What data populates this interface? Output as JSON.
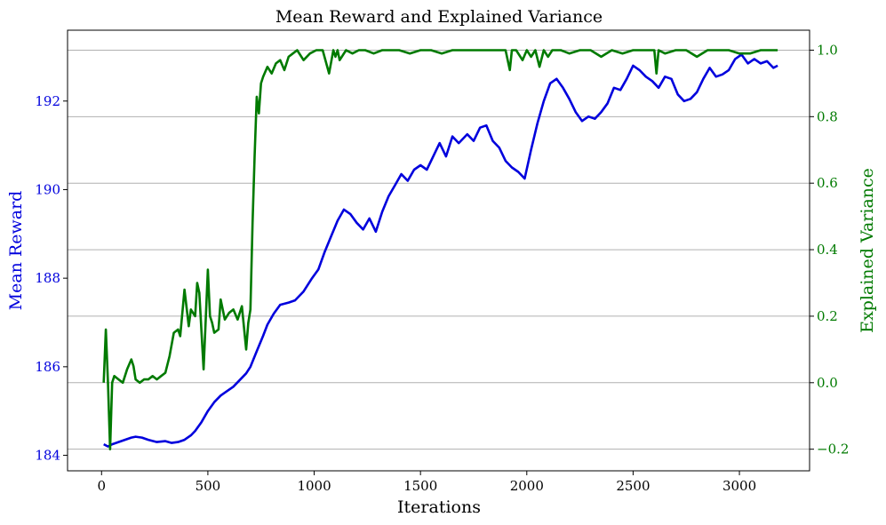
{
  "chart_data": {
    "type": "line",
    "title": "Mean Reward and Explained Variance",
    "xlabel": "Iterations",
    "ylabel_left": "Mean Reward",
    "ylabel_right": "Explained Variance",
    "xlim": [
      -160,
      3330
    ],
    "ylim_left": [
      183.65,
      193.6
    ],
    "ylim_right": [
      -0.265,
      1.06
    ],
    "x_ticks": [
      0,
      500,
      1000,
      1500,
      2000,
      2500,
      3000
    ],
    "y_left_ticks": [
      184,
      186,
      188,
      190,
      192
    ],
    "y_right_ticks": [
      -0.2,
      0.0,
      0.2,
      0.4,
      0.6,
      0.8,
      1.0
    ],
    "y_right_tick_labels": [
      "−0.2",
      "0.0",
      "0.2",
      "0.4",
      "0.6",
      "0.8",
      "1.0"
    ],
    "grid": "horizontal, right axis",
    "colors": {
      "left": "#0000dd",
      "right": "#007a00",
      "grid": "#b0b0b0"
    },
    "series": [
      {
        "axis": "left",
        "x": [
          10,
          30,
          50,
          80,
          110,
          140,
          160,
          190,
          220,
          260,
          300,
          330,
          360,
          390,
          420,
          440,
          470,
          500,
          530,
          560,
          590,
          620,
          650,
          680,
          700,
          730,
          760,
          780,
          810,
          840,
          880,
          910,
          950,
          990,
          1020,
          1050,
          1080,
          1110,
          1140,
          1170,
          1200,
          1230,
          1260,
          1290,
          1320,
          1350,
          1380,
          1410,
          1440,
          1470,
          1500,
          1530,
          1560,
          1590,
          1620,
          1650,
          1680,
          1720,
          1750,
          1780,
          1810,
          1840,
          1870,
          1900,
          1930,
          1960,
          1990,
          2020,
          2050,
          2080,
          2110,
          2140,
          2170,
          2200,
          2230,
          2260,
          2290,
          2320,
          2350,
          2380,
          2410,
          2440,
          2470,
          2500,
          2530,
          2560,
          2590,
          2620,
          2650,
          2680,
          2710,
          2740,
          2770,
          2800,
          2830,
          2860,
          2890,
          2920,
          2950,
          2980,
          3010,
          3040,
          3070,
          3100,
          3130,
          3160,
          3180
        ],
        "values": [
          184.25,
          184.2,
          184.25,
          184.3,
          184.35,
          184.4,
          184.42,
          184.4,
          184.35,
          184.3,
          184.32,
          184.28,
          184.3,
          184.35,
          184.45,
          184.55,
          184.75,
          185.0,
          185.2,
          185.35,
          185.45,
          185.55,
          185.7,
          185.85,
          186.0,
          186.35,
          186.7,
          186.95,
          187.2,
          187.4,
          187.45,
          187.5,
          187.7,
          188.0,
          188.2,
          188.6,
          188.95,
          189.3,
          189.55,
          189.45,
          189.25,
          189.1,
          189.35,
          189.05,
          189.5,
          189.85,
          190.1,
          190.35,
          190.2,
          190.45,
          190.55,
          190.45,
          190.75,
          191.05,
          190.75,
          191.2,
          191.05,
          191.25,
          191.1,
          191.4,
          191.45,
          191.1,
          190.95,
          190.65,
          190.5,
          190.4,
          190.25,
          190.9,
          191.5,
          192.0,
          192.4,
          192.5,
          192.3,
          192.05,
          191.75,
          191.55,
          191.65,
          191.6,
          191.75,
          191.95,
          192.3,
          192.25,
          192.5,
          192.8,
          192.7,
          192.55,
          192.45,
          192.3,
          192.55,
          192.5,
          192.15,
          192.0,
          192.05,
          192.2,
          192.5,
          192.75,
          192.55,
          192.6,
          192.7,
          192.95,
          193.05,
          192.85,
          192.95,
          192.85,
          192.9,
          192.75,
          192.8
        ]
      },
      {
        "axis": "right",
        "x": [
          10,
          20,
          30,
          40,
          50,
          60,
          80,
          100,
          120,
          140,
          150,
          160,
          180,
          200,
          220,
          240,
          260,
          280,
          300,
          320,
          340,
          360,
          370,
          390,
          410,
          420,
          440,
          450,
          460,
          480,
          500,
          510,
          520,
          530,
          550,
          560,
          580,
          600,
          620,
          640,
          660,
          680,
          690,
          700,
          710,
          720,
          730,
          740,
          750,
          760,
          780,
          800,
          820,
          840,
          860,
          880,
          900,
          920,
          950,
          980,
          1010,
          1040,
          1070,
          1090,
          1100,
          1110,
          1120,
          1150,
          1180,
          1210,
          1240,
          1280,
          1320,
          1360,
          1400,
          1450,
          1500,
          1550,
          1600,
          1650,
          1700,
          1750,
          1800,
          1850,
          1900,
          1920,
          1930,
          1950,
          1980,
          2000,
          2020,
          2040,
          2060,
          2080,
          2100,
          2120,
          2140,
          2160,
          2200,
          2250,
          2300,
          2350,
          2400,
          2450,
          2500,
          2550,
          2600,
          2610,
          2620,
          2650,
          2700,
          2750,
          2800,
          2850,
          2900,
          2950,
          3000,
          3050,
          3100,
          3150,
          3180
        ],
        "values": [
          0.0,
          0.16,
          0.0,
          -0.2,
          0.0,
          0.02,
          0.01,
          0.0,
          0.04,
          0.07,
          0.05,
          0.01,
          0.0,
          0.01,
          0.01,
          0.02,
          0.01,
          0.02,
          0.03,
          0.08,
          0.15,
          0.16,
          0.14,
          0.28,
          0.17,
          0.22,
          0.2,
          0.3,
          0.27,
          0.04,
          0.34,
          0.2,
          0.18,
          0.15,
          0.16,
          0.25,
          0.19,
          0.21,
          0.22,
          0.19,
          0.23,
          0.1,
          0.18,
          0.22,
          0.48,
          0.68,
          0.86,
          0.81,
          0.9,
          0.92,
          0.95,
          0.93,
          0.96,
          0.97,
          0.94,
          0.98,
          0.99,
          1.0,
          0.97,
          0.99,
          1.0,
          1.0,
          0.93,
          1.0,
          0.98,
          1.0,
          0.97,
          1.0,
          0.99,
          1.0,
          1.0,
          0.99,
          1.0,
          1.0,
          1.0,
          0.99,
          1.0,
          1.0,
          0.99,
          1.0,
          1.0,
          1.0,
          1.0,
          1.0,
          1.0,
          0.94,
          1.0,
          1.0,
          0.97,
          1.0,
          0.98,
          1.0,
          0.95,
          1.0,
          0.98,
          1.0,
          1.0,
          1.0,
          0.99,
          1.0,
          1.0,
          0.98,
          1.0,
          0.99,
          1.0,
          1.0,
          1.0,
          0.93,
          1.0,
          0.99,
          1.0,
          1.0,
          0.98,
          1.0,
          1.0,
          1.0,
          0.99,
          0.99,
          1.0,
          1.0,
          1.0
        ]
      }
    ]
  }
}
